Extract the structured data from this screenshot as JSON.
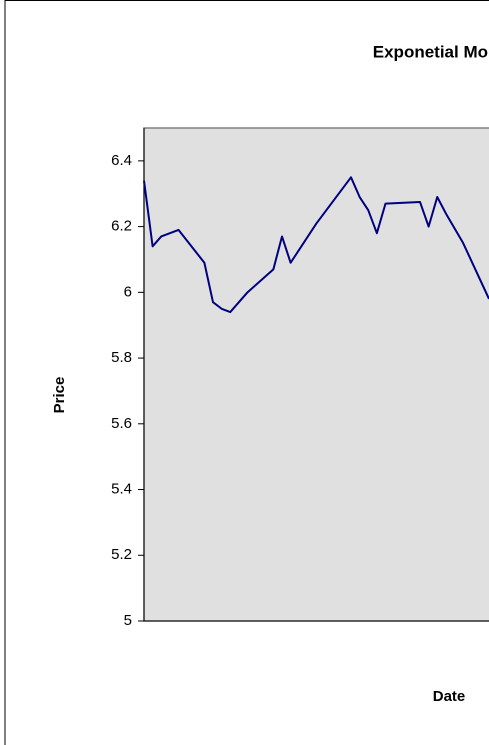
{
  "chart_data": {
    "type": "line",
    "title": "Exponetial Mo",
    "x_label": "Date",
    "y_label": "Price",
    "x": [
      0,
      1,
      2,
      4,
      7,
      8,
      9,
      10,
      12,
      15,
      16,
      17,
      19,
      20,
      24,
      25,
      26,
      27,
      28,
      32,
      33,
      34,
      35,
      37,
      40
    ],
    "series": [
      {
        "name": "Price",
        "color": "#000080",
        "values": [
          6.34,
          6.14,
          6.17,
          6.19,
          6.09,
          5.97,
          5.95,
          5.94,
          6.0,
          6.07,
          6.17,
          6.09,
          6.17,
          6.21,
          6.35,
          6.29,
          6.25,
          6.18,
          6.27,
          6.275,
          6.2,
          6.29,
          6.24,
          6.15,
          5.98
        ]
      }
    ],
    "xlim": [
      0,
      40
    ],
    "ylim": [
      5,
      6.5
    ],
    "yticks": [
      5,
      5.2,
      5.4,
      5.6,
      5.8,
      6,
      6.2,
      6.4
    ],
    "grid": false
  }
}
